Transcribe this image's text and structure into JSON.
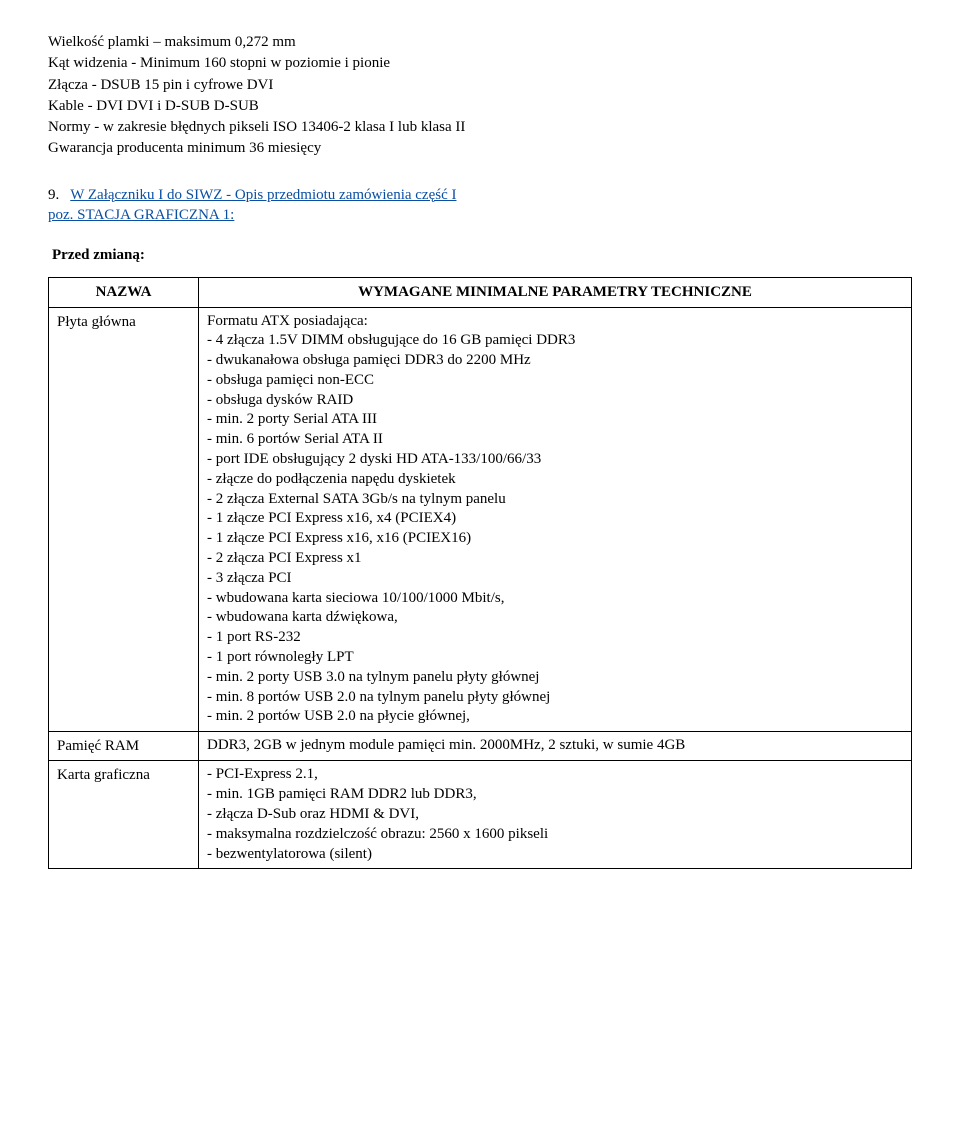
{
  "top": {
    "l1": "Wielkość plamki – maksimum 0,272 mm",
    "l2": "Kąt widzenia - Minimum 160 stopni w poziomie i pionie",
    "l3": "Złącza - DSUB 15 pin i cyfrowe DVI",
    "l4": "Kable - DVI DVI i D-SUB D-SUB",
    "l5": "Normy - w zakresie błędnych pikseli ISO 13406-2 klasa I lub klasa II",
    "l6": "Gwarancja producenta minimum 36 miesięcy"
  },
  "section9": {
    "num": "9.",
    "lead_plain": "W Załączniku I do SIWZ - Opis przedmiotu zamówienia część I",
    "lead_linked": "poz. STACJA GRAFICZNA 1:"
  },
  "przed": "Przed zmianą:",
  "table": {
    "head_nazwa": "NAZWA",
    "head_params": "WYMAGANE MINIMALNE PARAMETRY TECHNICZNE",
    "rows": [
      {
        "name": "Płyta główna",
        "lines": [
          "Formatu ATX posiadająca:",
          "- 4 złącza 1.5V DIMM obsługujące do 16 GB pamięci DDR3",
          "- dwukanałowa obsługa pamięci DDR3 do 2200 MHz",
          "- obsługa pamięci non-ECC",
          "- obsługa dysków RAID",
          "- min. 2 porty Serial ATA III",
          "- min. 6 portów Serial ATA II",
          "- port IDE obsługujący 2 dyski HD ATA-133/100/66/33",
          "- złącze do podłączenia napędu dyskietek",
          "- 2 złącza External SATA 3Gb/s na tylnym panelu",
          "- 1 złącze PCI Express x16, x4 (PCIEX4)",
          "- 1 złącze PCI Express x16, x16 (PCIEX16)",
          "- 2 złącza PCI Express x1",
          "- 3 złącza PCI",
          "- wbudowana karta sieciowa 10/100/1000 Mbit/s,",
          "- wbudowana karta dźwiękowa,",
          "- 1 port RS-232",
          "- 1 port równoległy LPT",
          "- min. 2 porty USB 3.0 na tylnym panelu płyty głównej",
          "- min. 8 portów USB 2.0 na tylnym panelu płyty głównej",
          "- min. 2 portów USB 2.0 na płycie głównej,"
        ]
      },
      {
        "name": "Pamięć RAM",
        "lines": [
          "DDR3, 2GB w jednym module pamięci min. 2000MHz, 2 sztuki, w sumie 4GB"
        ]
      },
      {
        "name": "Karta graficzna",
        "lines": [
          "- PCI-Express 2.1,",
          "- min. 1GB pamięci RAM DDR2 lub DDR3,",
          "- złącza D-Sub oraz HDMI & DVI,",
          "- maksymalna rozdzielczość obrazu: 2560 x 1600 pikseli",
          "- bezwentylatorowa (silent)"
        ]
      }
    ]
  }
}
